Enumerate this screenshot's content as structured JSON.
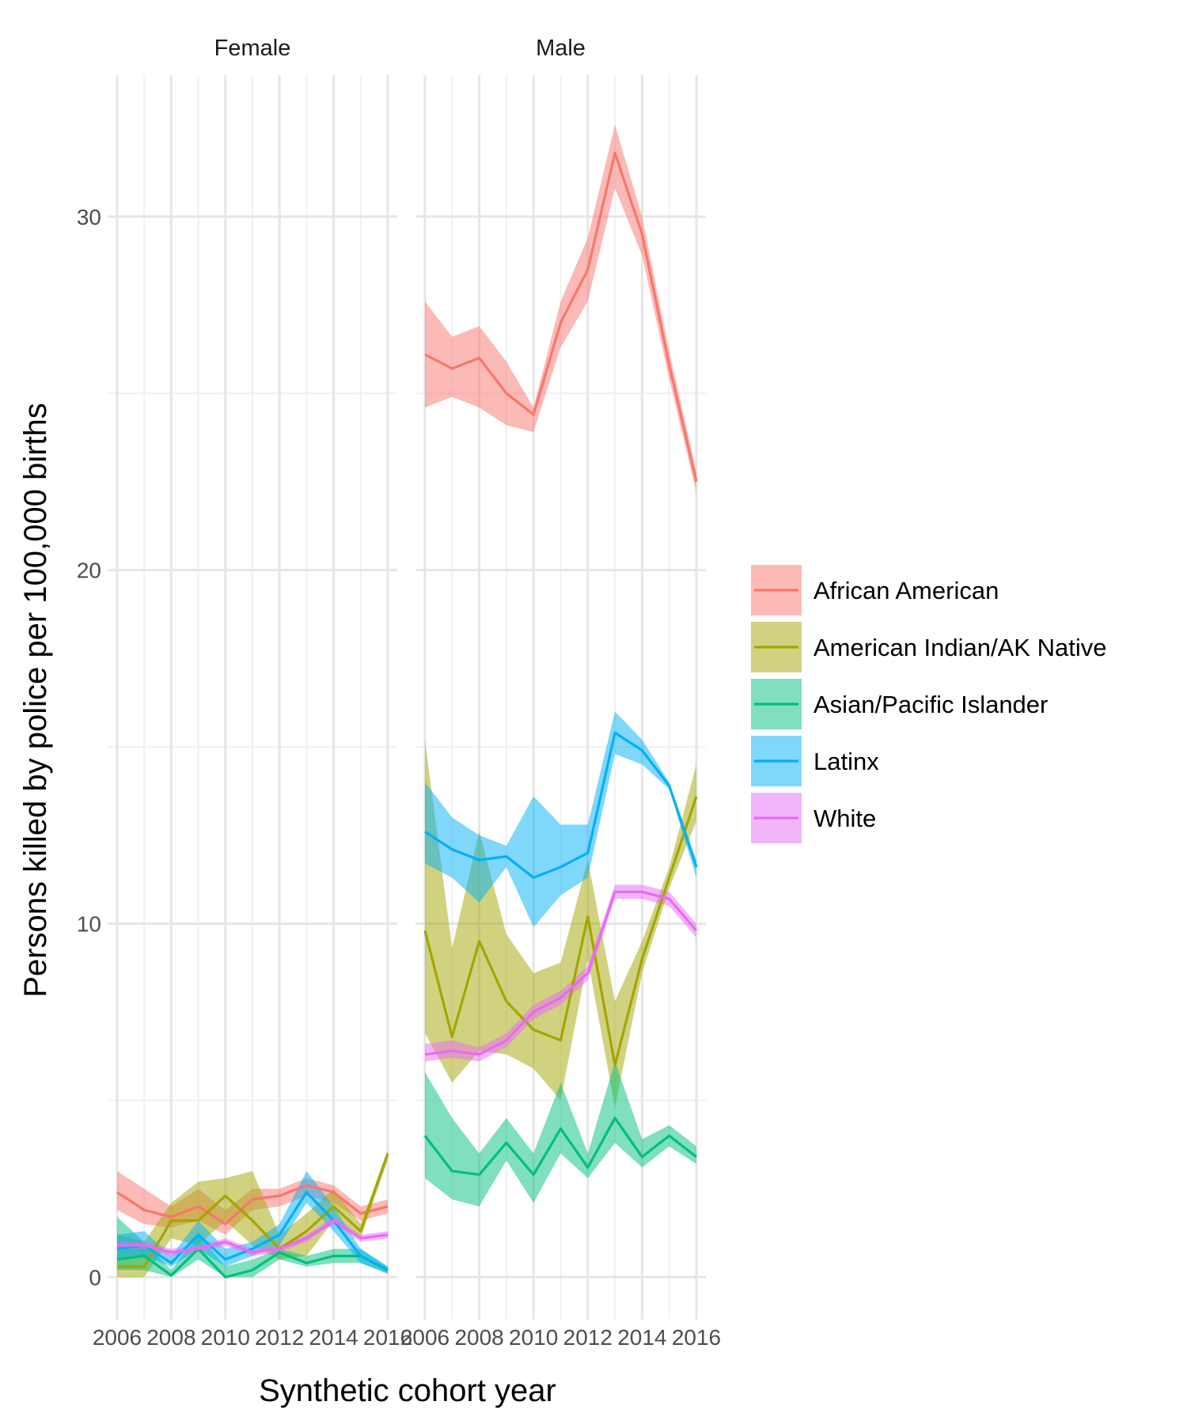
{
  "chart_data": {
    "type": "line",
    "xlabel": "Synthetic cohort year",
    "ylabel": "Persons killed by police per 100,000 births",
    "ylim": [
      -1.2,
      34
    ],
    "y_ticks": [
      0,
      10,
      20,
      30
    ],
    "y_tick_labels": [
      "0",
      "10",
      "20",
      "30"
    ],
    "x_ticks": [
      2006,
      2008,
      2010,
      2012,
      2014,
      2016
    ],
    "x_tick_labels": [
      "2006",
      "2008",
      "2010",
      "2012",
      "2014",
      "2016"
    ],
    "grid": true,
    "legend_position": "right",
    "colors": {
      "African American": "#F8766D",
      "American Indian/AK Native": "#A3A500",
      "Asian/Pacific Islander": "#00BF7D",
      "Latinx": "#00B0F6",
      "White": "#E76BF3"
    },
    "panels": [
      {
        "title": "Female",
        "x": [
          2006,
          2007,
          2008,
          2009,
          2010,
          2011,
          2012,
          2013,
          2014,
          2015,
          2016
        ],
        "series": [
          {
            "name": "African American",
            "values": [
              2.4,
              1.9,
              1.7,
              2.0,
              1.5,
              2.2,
              2.3,
              2.6,
              2.4,
              1.8,
              2.0
            ],
            "lower": [
              1.9,
              1.5,
              1.4,
              1.6,
              1.2,
              1.9,
              2.0,
              2.3,
              2.1,
              1.6,
              1.8
            ],
            "upper": [
              3.0,
              2.5,
              2.0,
              2.5,
              1.9,
              2.5,
              2.5,
              2.8,
              2.6,
              2.0,
              2.2
            ]
          },
          {
            "name": "American Indian/AK Native",
            "values": [
              0.3,
              0.3,
              1.6,
              1.6,
              2.3,
              1.6,
              0.8,
              1.3,
              2.0,
              1.3,
              3.5
            ],
            "lower": [
              0.0,
              0.0,
              1.1,
              0.9,
              1.6,
              0.9,
              0.5,
              0.6,
              1.6,
              1.1,
              3.3
            ],
            "upper": [
              1.2,
              1.0,
              2.1,
              2.7,
              2.8,
              3.0,
              1.2,
              1.8,
              2.5,
              1.5,
              3.6
            ]
          },
          {
            "name": "Asian/Pacific Islander",
            "values": [
              0.5,
              0.6,
              0.05,
              0.8,
              0.0,
              0.2,
              0.7,
              0.4,
              0.6,
              0.6,
              0.2
            ],
            "lower": [
              0.2,
              0.2,
              0.0,
              0.5,
              0.0,
              0.0,
              0.5,
              0.3,
              0.4,
              0.4,
              0.1
            ],
            "upper": [
              1.7,
              1.0,
              0.2,
              1.2,
              0.3,
              0.5,
              0.8,
              0.6,
              0.8,
              0.8,
              0.3
            ]
          },
          {
            "name": "Latinx",
            "values": [
              0.8,
              0.9,
              0.4,
              1.2,
              0.5,
              0.8,
              1.2,
              2.4,
              1.6,
              0.6,
              0.2
            ],
            "lower": [
              0.5,
              0.6,
              0.3,
              0.8,
              0.3,
              0.6,
              0.9,
              2.1,
              1.3,
              0.4,
              0.1
            ],
            "upper": [
              1.2,
              1.3,
              0.6,
              1.6,
              0.8,
              1.0,
              1.5,
              3.0,
              2.0,
              0.8,
              0.3
            ]
          },
          {
            "name": "White",
            "values": [
              0.9,
              0.9,
              0.7,
              0.8,
              1.0,
              0.7,
              0.8,
              1.1,
              1.6,
              1.1,
              1.2
            ],
            "lower": [
              0.8,
              0.8,
              0.6,
              0.7,
              0.9,
              0.6,
              0.7,
              1.0,
              1.5,
              1.0,
              1.1
            ],
            "upper": [
              1.0,
              1.0,
              0.8,
              0.9,
              1.1,
              0.8,
              0.9,
              1.2,
              1.7,
              1.2,
              1.3
            ]
          }
        ]
      },
      {
        "title": "Male",
        "x": [
          2006,
          2007,
          2008,
          2009,
          2010,
          2011,
          2012,
          2013,
          2014,
          2015,
          2016
        ],
        "series": [
          {
            "name": "African American",
            "values": [
              26.1,
              25.7,
              26.0,
              25.0,
              24.4,
              27.0,
              28.5,
              31.8,
              29.5,
              25.8,
              22.5
            ],
            "lower": [
              24.6,
              24.9,
              24.6,
              24.1,
              23.9,
              26.3,
              27.6,
              30.8,
              28.9,
              25.4,
              22.2
            ],
            "upper": [
              27.6,
              26.6,
              26.9,
              25.9,
              24.6,
              27.6,
              29.4,
              32.6,
              30.0,
              26.2,
              22.8
            ]
          },
          {
            "name": "American Indian/AK Native",
            "values": [
              9.8,
              6.8,
              9.5,
              7.8,
              7.0,
              6.7,
              10.2,
              6.0,
              9.0,
              11.3,
              13.6
            ],
            "lower": [
              6.9,
              5.5,
              6.4,
              6.3,
              5.9,
              5.0,
              9.0,
              4.8,
              8.6,
              11.0,
              12.9
            ],
            "upper": [
              15.2,
              9.3,
              12.6,
              9.7,
              8.6,
              8.9,
              11.8,
              7.8,
              9.5,
              11.6,
              14.5
            ]
          },
          {
            "name": "Asian/Pacific Islander",
            "values": [
              4.0,
              3.0,
              2.9,
              3.8,
              2.9,
              4.2,
              3.1,
              4.5,
              3.4,
              4.0,
              3.4
            ],
            "lower": [
              2.8,
              2.2,
              2.0,
              3.3,
              2.1,
              3.5,
              2.8,
              3.8,
              3.1,
              3.7,
              3.2
            ],
            "upper": [
              5.8,
              4.5,
              3.5,
              4.5,
              3.5,
              5.5,
              3.5,
              6.1,
              3.9,
              4.3,
              3.7
            ]
          },
          {
            "name": "Latinx",
            "values": [
              12.6,
              12.1,
              11.8,
              11.9,
              11.3,
              11.6,
              12.0,
              15.4,
              14.9,
              13.9,
              11.6
            ],
            "lower": [
              11.7,
              11.3,
              10.6,
              11.6,
              9.9,
              10.8,
              11.3,
              14.8,
              14.5,
              13.8,
              11.3
            ],
            "upper": [
              14.0,
              13.0,
              12.5,
              12.2,
              13.6,
              12.8,
              12.8,
              16.0,
              15.2,
              14.0,
              11.8
            ]
          },
          {
            "name": "White",
            "values": [
              6.3,
              6.4,
              6.3,
              6.7,
              7.5,
              7.9,
              8.6,
              10.9,
              10.9,
              10.7,
              9.8
            ],
            "lower": [
              6.1,
              6.2,
              6.1,
              6.5,
              7.3,
              7.7,
              8.4,
              10.7,
              10.7,
              10.5,
              9.6
            ],
            "upper": [
              6.6,
              6.7,
              6.5,
              6.9,
              7.7,
              8.1,
              8.8,
              11.1,
              11.1,
              10.9,
              10.0
            ]
          }
        ]
      }
    ]
  }
}
